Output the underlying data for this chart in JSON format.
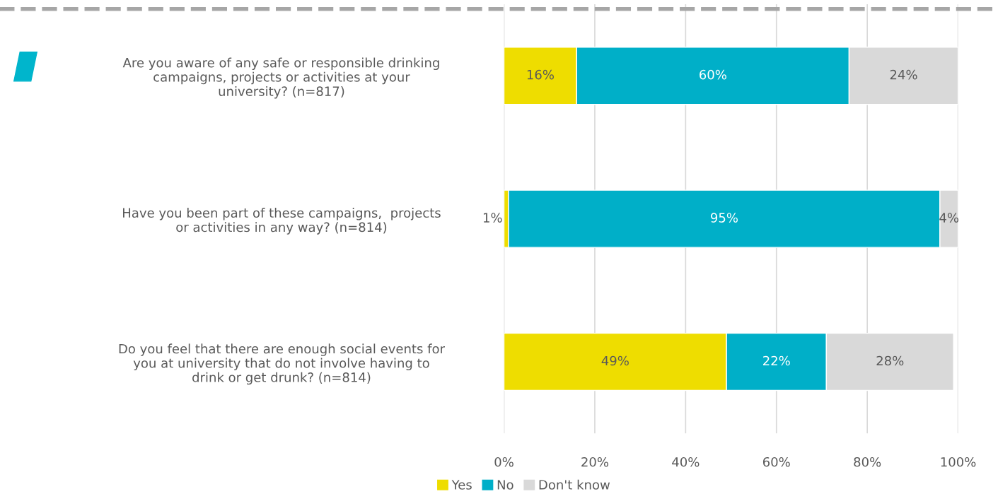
{
  "chart_data": {
    "type": "bar",
    "orientation": "horizontal",
    "stacked": true,
    "categories": [
      "Are you aware of any safe or responsible drinking\ncampaigns, projects or activities at your\nuniversity? (n=817)",
      "Have you been part of these campaigns,  projects\nor activities in any way? (n=814)",
      "Do you feel that there are enough social events for\nyou at university that do not involve having to\ndrink or get drunk? (n=814)"
    ],
    "series": [
      {
        "name": "Yes",
        "color": "#eedd00",
        "values": [
          16,
          1,
          49
        ],
        "value_labels": [
          "16%",
          "1%",
          "49%"
        ]
      },
      {
        "name": "No",
        "color": "#00afc8",
        "values": [
          60,
          95,
          22
        ],
        "value_labels": [
          "60%",
          "95%",
          "22%"
        ]
      },
      {
        "name": "Don't know",
        "color": "#d9d9d9",
        "values": [
          24,
          4,
          28
        ],
        "value_labels": [
          "24%",
          "4%",
          "28%"
        ]
      }
    ],
    "xlim": [
      0,
      100
    ],
    "xticks": [
      {
        "value": 0,
        "label": "0%"
      },
      {
        "value": 20,
        "label": "20%"
      },
      {
        "value": 40,
        "label": "40%"
      },
      {
        "value": 60,
        "label": "60%"
      },
      {
        "value": 80,
        "label": "80%"
      },
      {
        "value": 100,
        "label": "100%"
      }
    ],
    "grid": "x",
    "legend": "bottom"
  }
}
